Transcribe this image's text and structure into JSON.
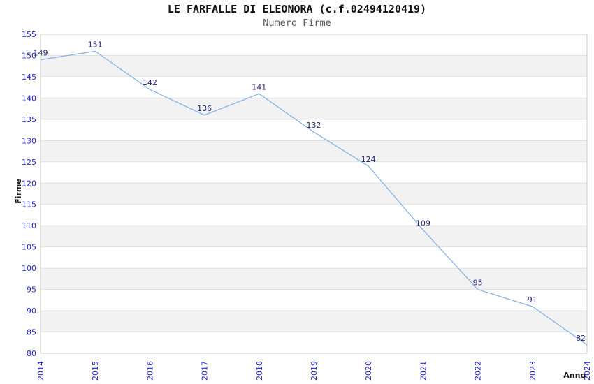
{
  "chart_data": {
    "type": "line",
    "title": "LE FARFALLE DI ELEONORA (c.f.02494120419)",
    "subtitle": "Numero Firme",
    "xlabel": "Anno",
    "ylabel": "Firme",
    "categories": [
      "2014",
      "2015",
      "2016",
      "2017",
      "2018",
      "2019",
      "2020",
      "2021",
      "2022",
      "2023",
      "2024"
    ],
    "values": [
      149,
      151,
      142,
      136,
      141,
      132,
      124,
      109,
      95,
      91,
      82
    ],
    "ylim": [
      80,
      155
    ],
    "ytick_step": 5,
    "yticks": [
      80,
      85,
      90,
      95,
      100,
      105,
      110,
      115,
      120,
      125,
      130,
      135,
      140,
      145,
      150,
      155
    ],
    "grid": "horizontal",
    "band_fill": "alternating",
    "legend_position": "none",
    "data_labels_visible": true,
    "colors": {
      "line": "#88B4E4",
      "tick_label": "#2525CC",
      "data_label": "#25257A",
      "band": "#F2F2F2",
      "gridline": "#E0E0E0",
      "border": "#C9C9C9",
      "title": "#111111",
      "subtitle": "#5A5A5A",
      "axis_title": "#1A1A1A",
      "background": "#FFFFFF"
    }
  }
}
